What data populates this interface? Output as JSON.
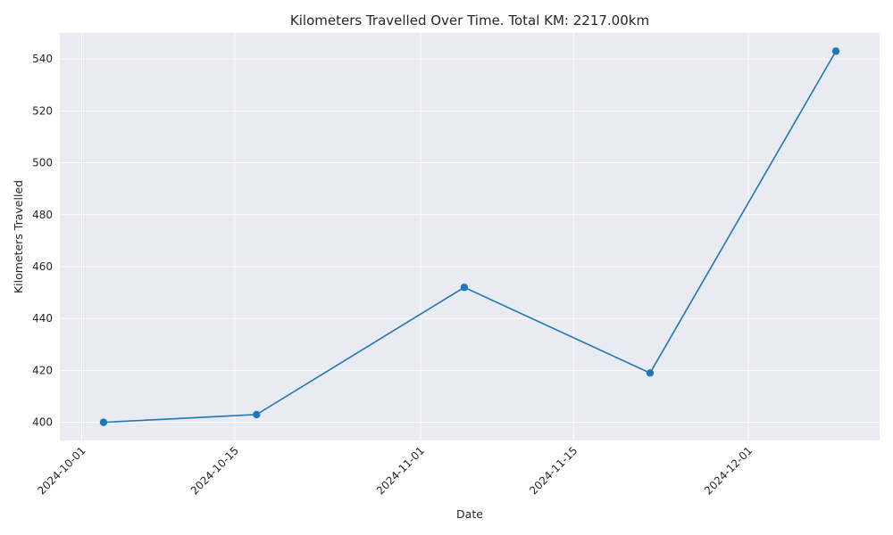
{
  "chart_data": {
    "type": "line",
    "title": "Kilometers Travelled Over Time. Total KM: 2217.00km",
    "xlabel": "Date",
    "ylabel": "Kilometers Travelled",
    "x": [
      "2024-10-03",
      "2024-10-17",
      "2024-11-05",
      "2024-11-22",
      "2024-12-09"
    ],
    "series": [
      {
        "values": [
          400,
          403,
          452,
          419,
          543
        ]
      }
    ],
    "x_ticks": [
      "2024-10-01",
      "2024-10-15",
      "2024-11-01",
      "2024-11-15",
      "2024-12-01"
    ],
    "y_ticks": [
      400,
      420,
      440,
      460,
      480,
      500,
      520,
      540
    ],
    "xlim": [
      "2024-09-29",
      "2024-12-13"
    ],
    "ylim": [
      393,
      550
    ],
    "grid": true,
    "colors": {
      "line": "#1f77b4",
      "background": "#eaeaf2",
      "grid": "#ffffff"
    }
  }
}
